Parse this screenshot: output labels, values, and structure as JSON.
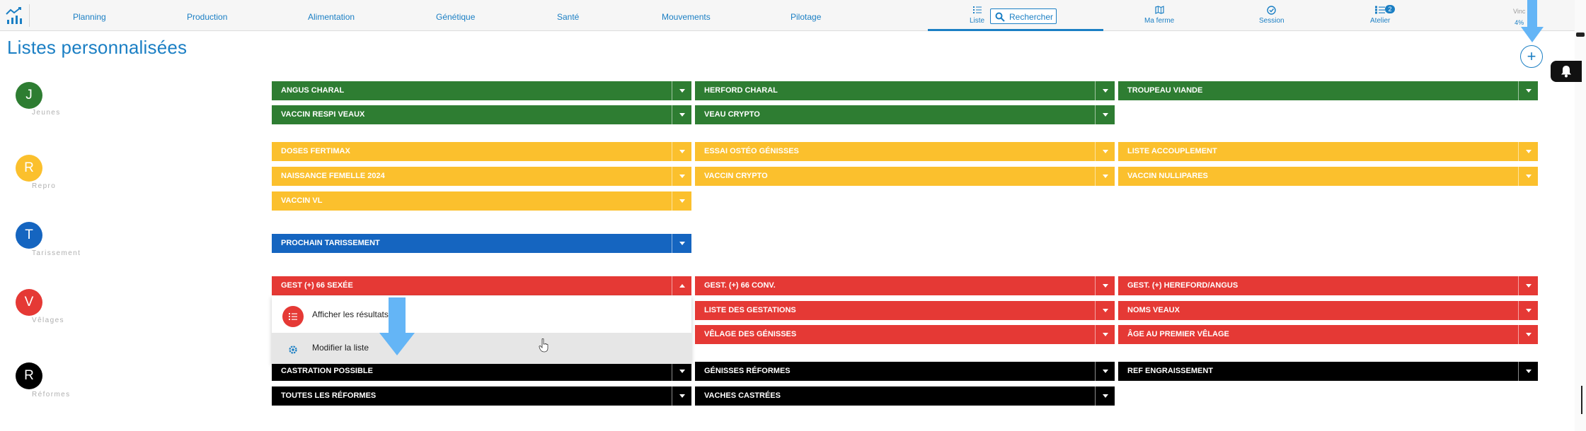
{
  "nav": {
    "items": [
      "Planning",
      "Production",
      "Alimentation",
      "Génétique",
      "Santé",
      "Mouvements",
      "Pilotage"
    ],
    "liste": "Liste",
    "search_placeholder": "Rechercher",
    "ma_ferme": "Ma ferme",
    "session": "Session",
    "atelier": "Atelier",
    "atelier_badge": "2",
    "user_name": "Vinc",
    "user_pct": "4%"
  },
  "page_title": "Listes personnalisées",
  "categories": [
    {
      "letter": "J",
      "label": "Jeunes",
      "color": "#2e7d32"
    },
    {
      "letter": "R",
      "label": "Repro",
      "color": "#fbc02d"
    },
    {
      "letter": "T",
      "label": "Tarissement",
      "color": "#1565c0"
    },
    {
      "letter": "V",
      "label": "Vêlages",
      "color": "#e53935"
    },
    {
      "letter": "R",
      "label": "Réformes",
      "color": "#000000"
    }
  ],
  "lists": {
    "jeunes": [
      "ANGUS CHARAL",
      "HERFORD CHARAL",
      "TROUPEAU VIANDE",
      "VACCIN RESPI VEAUX",
      "VEAU CRYPTO"
    ],
    "repro": [
      "DOSES FERTIMAX",
      "ESSAI OSTÉO GÉNISSES",
      "LISTE ACCOUPLEMENT",
      "NAISSANCE FEMELLE 2024",
      "VACCIN CRYPTO",
      "VACCIN NULLIPARES",
      "VACCIN VL"
    ],
    "tarissement": [
      "PROCHAIN TARISSEMENT"
    ],
    "velages": [
      "GEST (+) 66 SEXÉE",
      "GEST. (+) 66 CONV.",
      "GEST. (+) HEREFORD/ANGUS",
      "LISTE DES GESTATIONS",
      "NOMS VEAUX",
      "VÊLAGE DES GÉNISSES",
      "ÂGE AU PREMIER VÊLAGE"
    ],
    "reformes": [
      "CASTRATION POSSIBLE",
      "GÉNISSES RÉFORMES",
      "REF ENGRAISSEMENT",
      "TOUTES LES RÉFORMES",
      "VACHES CASTRÉES"
    ]
  },
  "menu": {
    "show_results": "Afficher les résultats",
    "edit_list": "Modifier la liste"
  },
  "colors": {
    "accent": "#1b7fc4",
    "green": "#2e7d32",
    "yellow": "#fbc02d",
    "blue": "#1565c0",
    "red": "#e53935",
    "black": "#000000",
    "annotation_arrow": "#64b5f6"
  }
}
